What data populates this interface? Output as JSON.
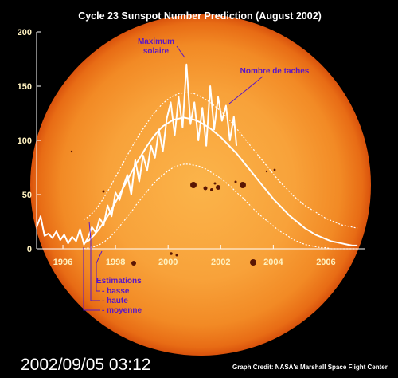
{
  "chart_data": {
    "type": "line",
    "title": "Cycle 23 Sunspot Number Prediction (August 2002)",
    "xlabel": "",
    "ylabel": "",
    "xlim": [
      1995.0,
      2007.5
    ],
    "ylim": [
      0,
      200
    ],
    "yticks": [
      0,
      50,
      100,
      150,
      200
    ],
    "xticks": [
      1996,
      1998,
      2000,
      2002,
      2004,
      2006
    ],
    "grid": false,
    "series": [
      {
        "key": "observed",
        "x": [
          1995.0,
          1995.15,
          1995.3,
          1995.45,
          1995.6,
          1995.75,
          1995.9,
          1996.05,
          1996.2,
          1996.35,
          1996.5,
          1996.65,
          1996.8,
          1996.95,
          1997.1,
          1997.25,
          1997.4,
          1997.55,
          1997.7,
          1997.85,
          1998.0,
          1998.15,
          1998.3,
          1998.45,
          1998.6,
          1998.75,
          1998.9,
          1999.05,
          1999.2,
          1999.35,
          1999.5,
          1999.65,
          1999.8,
          1999.95,
          2000.1,
          2000.25,
          2000.4,
          2000.55,
          2000.7,
          2000.85,
          2001.0,
          2001.15,
          2001.3,
          2001.45,
          2001.6,
          2001.75,
          2001.9,
          2002.05,
          2002.2,
          2002.35,
          2002.5,
          2002.6
        ],
        "y": [
          20,
          30,
          12,
          14,
          10,
          16,
          8,
          13,
          5,
          11,
          7,
          18,
          4,
          10,
          20,
          15,
          28,
          22,
          40,
          30,
          52,
          45,
          58,
          68,
          50,
          82,
          62,
          86,
          72,
          95,
          84,
          110,
          90,
          120,
          135,
          105,
          140,
          112,
          170,
          115,
          135,
          100,
          130,
          95,
          150,
          110,
          140,
          118,
          132,
          100,
          122,
          95
        ]
      },
      {
        "key": "predicted-mean",
        "x": [
          1996.8,
          1997.0,
          1997.2,
          1997.4,
          1997.6,
          1997.8,
          1998.0,
          1998.2,
          1998.4,
          1998.6,
          1998.8,
          1999.0,
          1999.2,
          1999.4,
          1999.6,
          1999.8,
          2000.0,
          2000.2,
          2000.4,
          2000.6,
          2000.8,
          2001.0,
          2001.2,
          2001.4,
          2001.6,
          2001.8,
          2002.0,
          2002.2,
          2002.4,
          2002.6,
          2002.8,
          2003.0,
          2003.2,
          2003.4,
          2003.6,
          2003.8,
          2004.0,
          2004.2,
          2004.4,
          2004.6,
          2004.8,
          2005.0,
          2005.2,
          2005.4,
          2005.6,
          2005.8,
          2006.0,
          2006.2,
          2006.4,
          2006.6,
          2006.8,
          2007.0,
          2007.2
        ],
        "y": [
          5,
          8,
          13,
          19,
          26,
          34,
          43,
          52,
          61,
          70,
          79,
          87,
          95,
          102,
          108,
          113,
          116,
          119,
          120,
          121,
          120,
          119,
          117,
          114,
          111,
          107,
          103,
          98,
          93,
          88,
          82,
          76,
          70,
          64,
          58,
          52,
          46,
          41,
          36,
          31,
          27,
          23,
          19,
          16,
          13,
          11,
          9,
          7,
          6,
          5,
          4,
          3,
          3
        ]
      },
      {
        "key": "predicted-high",
        "x": [
          1996.8,
          1997.0,
          1997.2,
          1997.4,
          1997.6,
          1997.8,
          1998.0,
          1998.2,
          1998.4,
          1998.6,
          1998.8,
          1999.0,
          1999.2,
          1999.4,
          1999.6,
          1999.8,
          2000.0,
          2000.2,
          2000.4,
          2000.6,
          2000.8,
          2001.0,
          2001.2,
          2001.4,
          2001.6,
          2001.8,
          2002.0,
          2002.2,
          2002.4,
          2002.6,
          2002.8,
          2003.0,
          2003.2,
          2003.4,
          2003.6,
          2003.8,
          2004.0,
          2004.2,
          2004.4,
          2004.6,
          2004.8,
          2005.0,
          2005.2,
          2005.4,
          2005.6,
          2005.8,
          2006.0,
          2006.2,
          2006.4,
          2006.6,
          2006.8,
          2007.0,
          2007.2
        ],
        "y": [
          27,
          30,
          35,
          41,
          49,
          57,
          66,
          75,
          84,
          93,
          101,
          109,
          116,
          123,
          129,
          134,
          138,
          141,
          143,
          144,
          144,
          143,
          141,
          138,
          135,
          131,
          127,
          122,
          117,
          111,
          105,
          99,
          93,
          87,
          81,
          75,
          69,
          63,
          58,
          53,
          48,
          44,
          40,
          37,
          34,
          31,
          28,
          26,
          24,
          22,
          21,
          20,
          19
        ]
      },
      {
        "key": "predicted-low",
        "x": [
          1996.8,
          1997.0,
          1997.2,
          1997.4,
          1997.6,
          1997.8,
          1998.0,
          1998.2,
          1998.4,
          1998.6,
          1998.8,
          1999.0,
          1999.2,
          1999.4,
          1999.6,
          1999.8,
          2000.0,
          2000.2,
          2000.4,
          2000.6,
          2000.8,
          2001.0,
          2001.2,
          2001.4,
          2001.6,
          2001.8,
          2002.0,
          2002.2,
          2002.4,
          2002.6,
          2002.8,
          2003.0,
          2003.2,
          2003.4,
          2003.6,
          2003.8,
          2004.0,
          2004.2,
          2004.4,
          2004.6,
          2004.8,
          2005.0,
          2005.2,
          2005.4,
          2005.6,
          2005.8,
          2006.0,
          2006.2,
          2006.4,
          2006.6,
          2006.8,
          2007.0,
          2007.2
        ],
        "y": [
          0,
          1,
          2,
          4,
          7,
          11,
          16,
          22,
          28,
          34,
          41,
          47,
          53,
          59,
          64,
          68,
          72,
          75,
          77,
          78,
          78,
          77,
          76,
          74,
          71,
          68,
          65,
          61,
          57,
          52,
          48,
          43,
          38,
          33,
          29,
          25,
          21,
          17,
          14,
          11,
          8,
          6,
          4,
          3,
          2,
          1,
          1,
          0,
          0,
          0,
          0,
          0,
          0
        ]
      }
    ],
    "annotations": {
      "maximum": {
        "line1": "Maximum",
        "line2": "solaire"
      },
      "nombre": "Nombre de taches",
      "estimations": "Estimations",
      "basse": "- basse",
      "haute": "- haute",
      "moyenne": "- moyenne"
    }
  },
  "footer": {
    "timestamp": "2002/09/05 03:12",
    "credit": "Graph Credit:  NASA's Marshall Space Flight Center"
  },
  "colors": {
    "background": "#000000",
    "sun_center": "#fbb44a",
    "sun_edge": "#e4600f",
    "curve": "#ffffff",
    "annotation_text": "#5a16c8",
    "tick_text": "#fff2c0"
  }
}
